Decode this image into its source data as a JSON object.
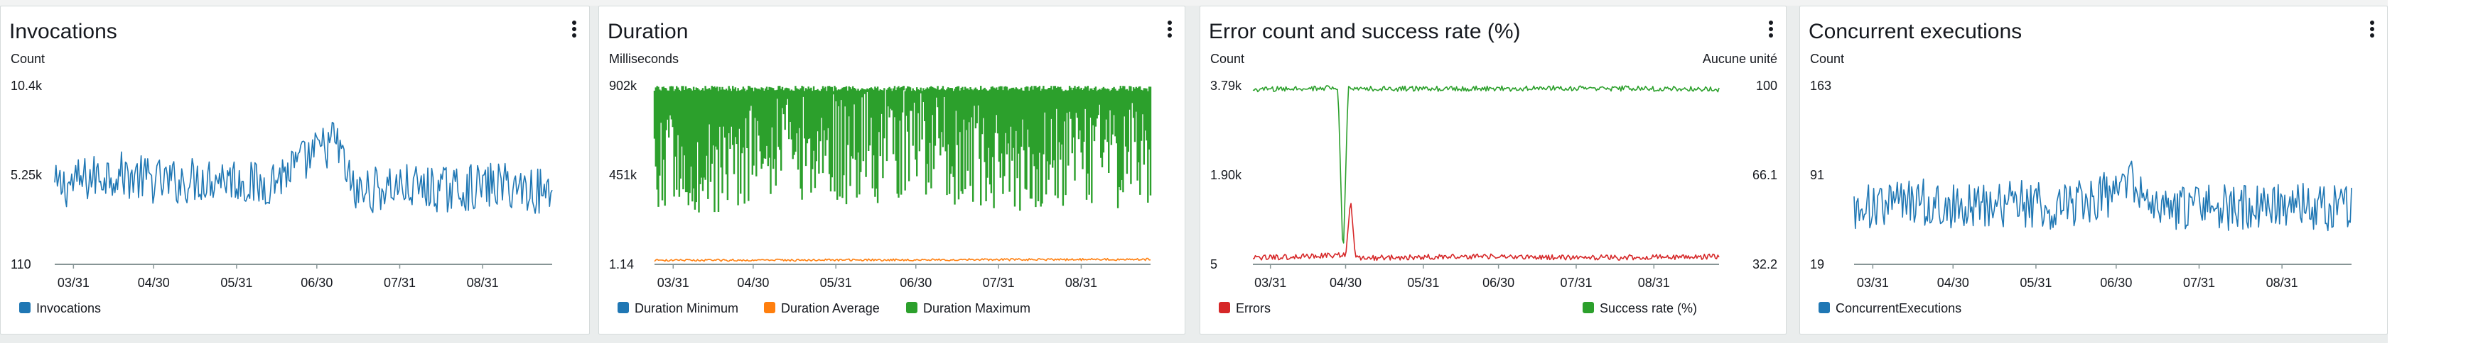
{
  "colors": {
    "blue": "#1f77b4",
    "orange": "#ff7f0e",
    "green": "#2ca02c",
    "red": "#d62728",
    "axis": "#879596"
  },
  "menu_icon": "more-vertical-icon",
  "chart_data": [
    {
      "type": "line",
      "title": "Invocations",
      "ylabel": "Count",
      "ylabel_right": "",
      "x_tick_labels": [
        "03/31",
        "04/30",
        "05/31",
        "06/30",
        "07/31",
        "08/31"
      ],
      "x_range": [
        "03/24",
        "09/26"
      ],
      "y_ticks": [
        "10.4k",
        "5.25k",
        "110"
      ],
      "ylim": [
        110,
        10400
      ],
      "grid": false,
      "legend_position": "bottom-left",
      "series": [
        {
          "name": "Invocations",
          "color": "#1f77b4",
          "axis": "left",
          "x": [
            "03/24",
            "04/14",
            "05/05",
            "05/26",
            "06/09",
            "06/23",
            "07/07",
            "07/14",
            "07/28",
            "08/18",
            "09/08",
            "09/26"
          ],
          "y": [
            4500,
            5400,
            4800,
            5200,
            4600,
            5800,
            7300,
            4200,
            4600,
            4400,
            4700,
            4200
          ]
        }
      ]
    },
    {
      "type": "line",
      "title": "Duration",
      "ylabel": "Milliseconds",
      "ylabel_right": "",
      "x_tick_labels": [
        "03/31",
        "04/30",
        "05/31",
        "06/30",
        "07/31",
        "08/31"
      ],
      "x_range": [
        "03/24",
        "09/26"
      ],
      "y_ticks": [
        "902k",
        "451k",
        "1.14"
      ],
      "ylim": [
        1.14,
        902000
      ],
      "grid": false,
      "legend_position": "bottom-left",
      "series": [
        {
          "name": "Duration Minimum",
          "color": "#1f77b4",
          "axis": "left",
          "x": [
            "03/24",
            "09/26"
          ],
          "y": [
            1.14,
            1.14
          ]
        },
        {
          "name": "Duration Average",
          "color": "#ff7f0e",
          "axis": "left",
          "x": [
            "03/24",
            "06/01",
            "09/26"
          ],
          "y": [
            20000,
            22000,
            25000
          ]
        },
        {
          "name": "Duration Maximum",
          "color": "#2ca02c",
          "axis": "left",
          "x": [
            "03/24",
            "04/14",
            "05/05",
            "06/09",
            "07/14",
            "08/04",
            "09/26"
          ],
          "y": [
            550000,
            470000,
            560000,
            600000,
            580000,
            520000,
            560000
          ]
        }
      ]
    },
    {
      "type": "line",
      "title": "Error count and success rate (%)",
      "ylabel": "Count",
      "ylabel_right": "Aucune unité",
      "x_tick_labels": [
        "03/31",
        "04/30",
        "05/31",
        "06/30",
        "07/31",
        "08/31"
      ],
      "x_range": [
        "03/24",
        "09/26"
      ],
      "y_ticks": [
        "3.79k",
        "1.90k",
        "5"
      ],
      "ylim": [
        5,
        3790
      ],
      "y_ticks_right": [
        "100",
        "66.1",
        "32.2"
      ],
      "ylim_right": [
        32.2,
        100
      ],
      "grid": false,
      "legend_position": "bottom",
      "series": [
        {
          "name": "Errors",
          "color": "#d62728",
          "axis": "left",
          "x": [
            "03/24",
            "04/30",
            "05/02",
            "05/04",
            "06/15",
            "07/31",
            "09/26"
          ],
          "y": [
            80,
            150,
            1400,
            80,
            120,
            90,
            110
          ]
        },
        {
          "name": "Success rate (%)",
          "color": "#2ca02c",
          "axis": "right",
          "x": [
            "03/24",
            "04/27",
            "04/29",
            "05/01",
            "05/03",
            "06/30",
            "07/31",
            "09/26"
          ],
          "y": [
            98.5,
            99.2,
            33,
            99.0,
            98.8,
            98.9,
            99.1,
            98.6
          ]
        }
      ]
    },
    {
      "type": "line",
      "title": "Concurrent executions",
      "ylabel": "Count",
      "ylabel_right": "",
      "x_tick_labels": [
        "03/31",
        "04/30",
        "05/31",
        "06/30",
        "07/31",
        "08/31"
      ],
      "x_range": [
        "03/24",
        "09/26"
      ],
      "y_ticks": [
        "163",
        "91",
        "19"
      ],
      "ylim": [
        19,
        163
      ],
      "grid": false,
      "legend_position": "bottom-left",
      "series": [
        {
          "name": "ConcurrentExecutions",
          "color": "#1f77b4",
          "axis": "left",
          "x": [
            "03/24",
            "04/14",
            "05/05",
            "05/26",
            "06/09",
            "06/23",
            "07/07",
            "07/14",
            "07/28",
            "08/18",
            "09/08",
            "09/26"
          ],
          "y": [
            63,
            70,
            66,
            68,
            64,
            72,
            85,
            62,
            65,
            64,
            66,
            64
          ]
        }
      ]
    }
  ]
}
